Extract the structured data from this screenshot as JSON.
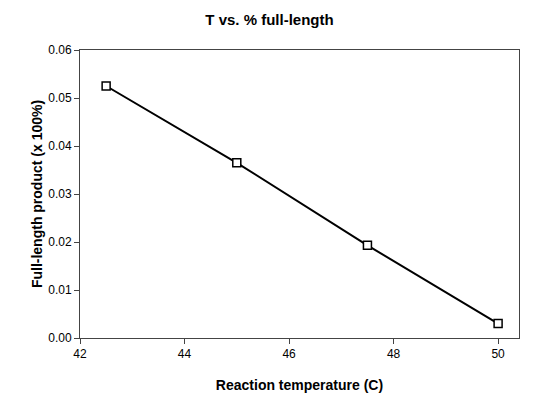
{
  "chart_data": {
    "type": "line",
    "title": "T vs. % full-length",
    "xlabel": "Reaction temperature (C)",
    "ylabel": "Full-length product (x 100%)",
    "x": [
      42.5,
      45,
      47.5,
      50
    ],
    "values": [
      0.0525,
      0.0365,
      0.0193,
      0.003
    ],
    "color": "#000000",
    "marker": "square",
    "xlim": [
      42,
      50.4
    ],
    "ylim": [
      0,
      0.06
    ],
    "xticks": [
      42,
      44,
      46,
      48,
      50
    ],
    "yticks": [
      {
        "value": 0,
        "label": "0.00"
      },
      0.01,
      0.02,
      0.03,
      0.04,
      0.05,
      0.06
    ],
    "grid": false
  }
}
